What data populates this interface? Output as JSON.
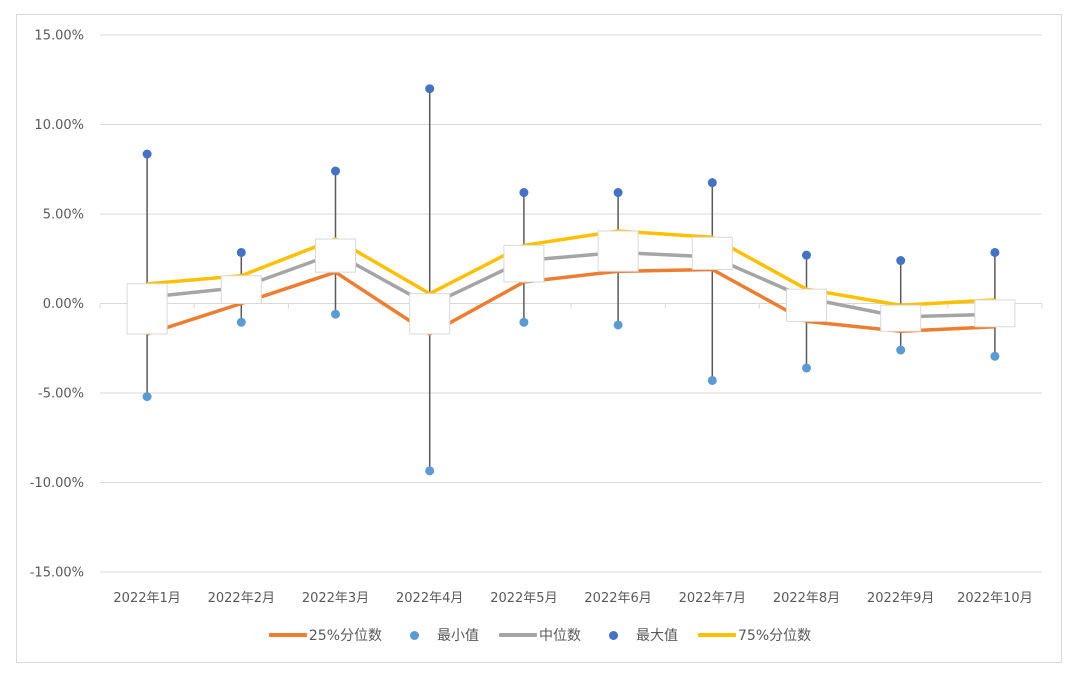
{
  "chart_data": {
    "type": "line",
    "subtype": "box-plot (line series with high-low lines and up/down bars)",
    "title": "",
    "xlabel": "",
    "ylabel": "",
    "categories": [
      "2022年1月",
      "2022年2月",
      "2022年3月",
      "2022年4月",
      "2022年5月",
      "2022年6月",
      "2022年7月",
      "2022年8月",
      "2022年9月",
      "2022年10月"
    ],
    "ylim": [
      -15,
      15
    ],
    "yticks": [
      "15.00%",
      "10.00%",
      "5.00%",
      "0.00%",
      "-5.00%",
      "-10.00%",
      "-15.00%"
    ],
    "ytick_values": [
      15,
      10,
      5,
      0,
      -5,
      -10,
      -15
    ],
    "y_unit": "%",
    "grid": true,
    "legend_position": "bottom",
    "series": [
      {
        "name": "25%分位数",
        "kind": "line",
        "color": "#ED7D31",
        "values": [
          -1.7,
          0.0,
          1.75,
          -1.7,
          1.2,
          1.8,
          1.9,
          -1.0,
          -1.55,
          -1.3
        ]
      },
      {
        "name": "最小值",
        "kind": "marker",
        "color": "#5B9BD5",
        "values": [
          -5.2,
          -1.05,
          -0.6,
          -9.35,
          -1.05,
          -1.2,
          -4.3,
          -3.6,
          -2.6,
          -2.95
        ]
      },
      {
        "name": "中位数",
        "kind": "line",
        "color": "#A5A5A5",
        "values": [
          0.35,
          0.9,
          2.8,
          -0.1,
          2.4,
          2.85,
          2.6,
          0.3,
          -0.75,
          -0.6
        ]
      },
      {
        "name": "最大值",
        "kind": "marker",
        "color": "#4472C4",
        "values": [
          8.35,
          2.85,
          7.4,
          12.0,
          6.2,
          6.2,
          6.75,
          2.7,
          2.4,
          2.85
        ]
      },
      {
        "name": "75%分位数",
        "kind": "line",
        "color": "#FFC000",
        "values": [
          1.1,
          1.55,
          3.6,
          0.55,
          3.25,
          4.05,
          3.7,
          0.8,
          -0.1,
          0.2
        ]
      }
    ],
    "high_low_lines": {
      "color": "#595959",
      "from": "最小值",
      "to": "最大值"
    },
    "up_down_bars": {
      "fill": "#ffffff",
      "border": "#d9d9d9",
      "from": "25%分位数",
      "to": "75%分位数"
    }
  },
  "legend": [
    {
      "label": "25%分位数",
      "type": "line",
      "color": "#ED7D31"
    },
    {
      "label": "最小值",
      "type": "dot",
      "color": "#5B9BD5"
    },
    {
      "label": "中位数",
      "type": "line",
      "color": "#A5A5A5"
    },
    {
      "label": "最大值",
      "type": "dot",
      "color": "#4472C4"
    },
    {
      "label": "75%分位数",
      "type": "line",
      "color": "#FFC000"
    }
  ]
}
